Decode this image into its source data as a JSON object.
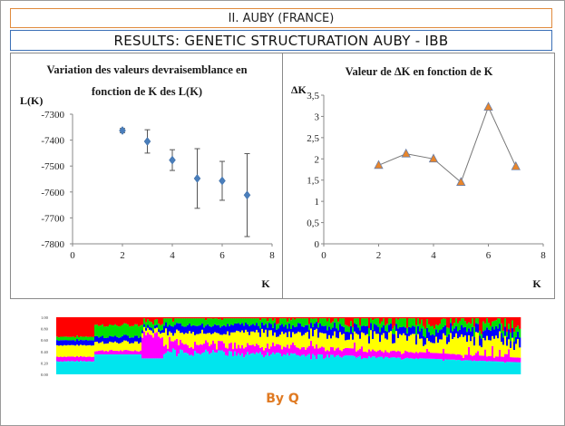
{
  "header": {
    "subtitle": "II. AUBY (FRANCE)",
    "title": "RESULTS: GENETIC STRUCTURATION AUBY - IBB"
  },
  "footer": {
    "credit": "By Q"
  },
  "colors": {
    "left_markers": "#4a7ebb",
    "right_markers": "#e8852a",
    "error_bars": "#555555",
    "line": "#777777",
    "structure_clusters": [
      "#00e5ee",
      "#ff00ff",
      "#ffff00",
      "#0000ff",
      "#00e000",
      "#ff0000"
    ]
  },
  "structure_plot": {
    "yticks": [
      "1.00",
      "0.80",
      "0.60",
      "0.40",
      "0.20",
      "0.00"
    ]
  },
  "chart_data": [
    {
      "type": "scatter",
      "title": "Variation des valeurs devraisemblance en fonction de K des L(K)",
      "title_lines": [
        "Variation des valeurs devraisemblance en",
        "fonction de K des L(K)"
      ],
      "xlabel": "K",
      "ylabel": "L(K)",
      "xlim": [
        0,
        8
      ],
      "ylim": [
        -7800,
        -7300
      ],
      "xticks": [
        0,
        2,
        4,
        6,
        8
      ],
      "yticks": [
        -7300,
        -7400,
        -7500,
        -7600,
        -7700,
        -7800
      ],
      "points": [
        {
          "x": 2,
          "y": -7363,
          "err": 8
        },
        {
          "x": 3,
          "y": -7405,
          "err": 45
        },
        {
          "x": 4,
          "y": -7477,
          "err": 40
        },
        {
          "x": 5,
          "y": -7548,
          "err": 115
        },
        {
          "x": 6,
          "y": -7557,
          "err": 75
        },
        {
          "x": 7,
          "y": -7612,
          "err": 160
        }
      ],
      "grid": false,
      "legend": "none"
    },
    {
      "type": "line",
      "title": "Valeur de ΔK en fonction de K",
      "xlabel": "K",
      "ylabel": "ΔK",
      "xlim": [
        0,
        8
      ],
      "ylim": [
        0,
        3.5
      ],
      "xticks": [
        0,
        2,
        4,
        6,
        8
      ],
      "yticks": [
        0,
        0.5,
        1,
        1.5,
        2,
        2.5,
        3,
        3.5
      ],
      "ytick_labels": [
        "0",
        "0,5",
        "1",
        "1,5",
        "2",
        "2,5",
        "3",
        "3,5"
      ],
      "x": [
        2,
        3,
        4,
        5,
        6,
        7
      ],
      "y": [
        1.85,
        2.12,
        2.0,
        1.45,
        3.22,
        1.82
      ],
      "grid": false,
      "legend": "none"
    }
  ]
}
